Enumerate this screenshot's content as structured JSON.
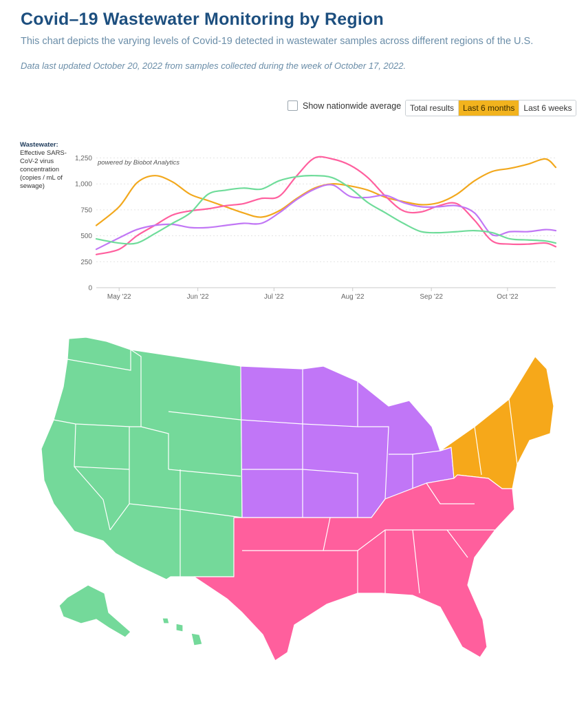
{
  "header": {
    "title": "Covid–19 Wastewater Monitoring by Region",
    "subtitle": "This chart depicts the varying levels of Covid-19 detected in wastewater samples across different regions of the U.S.",
    "updated": "Data last updated October 20, 2022 from samples collected during the week of October 17, 2022."
  },
  "controls": {
    "nationwide_label": "Show nationwide average",
    "nationwide_checked": false,
    "range_buttons": [
      "Total results",
      "Last 6 months",
      "Last 6 weeks"
    ],
    "active_range": "Last 6 months"
  },
  "chart_data": {
    "type": "line",
    "ylabel_title": "Wastewater:",
    "ylabel": "Effective SARS-CoV-2 virus concentration (copies / mL of sewage)",
    "credit": "powered by Biobot Analytics",
    "ylim": [
      0,
      1300
    ],
    "yticks": [
      "0",
      "250",
      "500",
      "750",
      "1,000",
      "1,250"
    ],
    "ytick_values": [
      0,
      250,
      500,
      750,
      1000,
      1250
    ],
    "x_tick_labels": [
      "May '22",
      "Jun '22",
      "Jul '22",
      "Aug '22",
      "Sep '22",
      "Oct '22"
    ],
    "x_tick_dates": [
      "2022-05-01",
      "2022-06-01",
      "2022-07-01",
      "2022-08-01",
      "2022-09-01",
      "2022-10-01"
    ],
    "xlim": [
      "2022-04-22",
      "2022-10-20"
    ],
    "grid": true,
    "legend": "none",
    "series": [
      {
        "color": "#f2a81d",
        "x": [
          "2022-04-22",
          "2022-05-01",
          "2022-05-08",
          "2022-05-15",
          "2022-05-22",
          "2022-05-29",
          "2022-06-05",
          "2022-06-12",
          "2022-06-19",
          "2022-06-26",
          "2022-07-03",
          "2022-07-10",
          "2022-07-17",
          "2022-07-24",
          "2022-07-31",
          "2022-08-07",
          "2022-08-14",
          "2022-08-21",
          "2022-08-28",
          "2022-09-04",
          "2022-09-11",
          "2022-09-18",
          "2022-09-25",
          "2022-10-02",
          "2022-10-09",
          "2022-10-16",
          "2022-10-20"
        ],
        "y": [
          600,
          780,
          1010,
          1080,
          1020,
          900,
          840,
          780,
          720,
          680,
          740,
          860,
          960,
          1000,
          980,
          940,
          870,
          830,
          800,
          820,
          900,
          1030,
          1120,
          1150,
          1190,
          1240,
          1160
        ]
      },
      {
        "color": "#ff5f9e",
        "x": [
          "2022-04-22",
          "2022-05-01",
          "2022-05-08",
          "2022-05-15",
          "2022-05-22",
          "2022-05-29",
          "2022-06-05",
          "2022-06-12",
          "2022-06-19",
          "2022-06-26",
          "2022-07-03",
          "2022-07-10",
          "2022-07-17",
          "2022-07-24",
          "2022-07-31",
          "2022-08-07",
          "2022-08-14",
          "2022-08-21",
          "2022-08-28",
          "2022-09-04",
          "2022-09-11",
          "2022-09-18",
          "2022-09-25",
          "2022-10-02",
          "2022-10-09",
          "2022-10-16",
          "2022-10-20"
        ],
        "y": [
          320,
          370,
          500,
          600,
          700,
          740,
          760,
          790,
          810,
          860,
          880,
          1080,
          1250,
          1240,
          1180,
          1060,
          880,
          740,
          730,
          790,
          810,
          650,
          450,
          420,
          420,
          430,
          395
        ]
      },
      {
        "color": "#c177f5",
        "x": [
          "2022-04-22",
          "2022-05-01",
          "2022-05-08",
          "2022-05-15",
          "2022-05-22",
          "2022-05-29",
          "2022-06-05",
          "2022-06-12",
          "2022-06-19",
          "2022-06-26",
          "2022-07-03",
          "2022-07-10",
          "2022-07-17",
          "2022-07-24",
          "2022-07-31",
          "2022-08-07",
          "2022-08-14",
          "2022-08-21",
          "2022-08-28",
          "2022-09-04",
          "2022-09-11",
          "2022-09-18",
          "2022-09-25",
          "2022-10-02",
          "2022-10-09",
          "2022-10-16",
          "2022-10-20"
        ],
        "y": [
          370,
          480,
          560,
          600,
          610,
          580,
          580,
          600,
          620,
          620,
          720,
          850,
          950,
          990,
          880,
          870,
          890,
          820,
          780,
          780,
          790,
          720,
          510,
          540,
          540,
          560,
          550
        ]
      },
      {
        "color": "#6fdc9a",
        "x": [
          "2022-04-22",
          "2022-05-01",
          "2022-05-08",
          "2022-05-15",
          "2022-05-22",
          "2022-05-29",
          "2022-06-05",
          "2022-06-12",
          "2022-06-19",
          "2022-06-26",
          "2022-07-03",
          "2022-07-10",
          "2022-07-17",
          "2022-07-24",
          "2022-07-31",
          "2022-08-07",
          "2022-08-14",
          "2022-08-21",
          "2022-08-28",
          "2022-09-04",
          "2022-09-11",
          "2022-09-18",
          "2022-09-25",
          "2022-10-02",
          "2022-10-09",
          "2022-10-16",
          "2022-10-20"
        ],
        "y": [
          470,
          430,
          430,
          520,
          620,
          720,
          900,
          940,
          960,
          950,
          1030,
          1070,
          1080,
          1060,
          960,
          820,
          720,
          620,
          540,
          530,
          540,
          550,
          530,
          470,
          460,
          450,
          430
        ]
      }
    ]
  },
  "map": {
    "regions": [
      {
        "key": "west",
        "color": "#74d99a"
      },
      {
        "key": "midwest",
        "color": "#c176f7"
      },
      {
        "key": "south",
        "color": "#ff5f9d"
      },
      {
        "key": "northeast",
        "color": "#f6a81a"
      }
    ]
  }
}
